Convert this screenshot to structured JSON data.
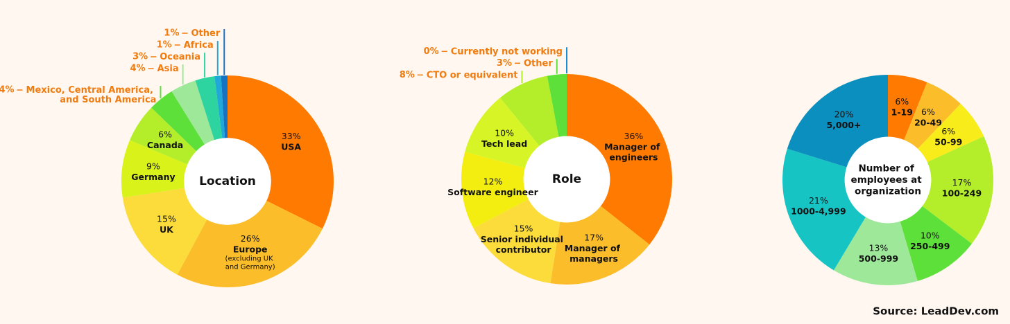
{
  "chart_data": [
    {
      "type": "pie",
      "title": "Location",
      "categories": [
        "USA",
        "Europe",
        "UK",
        "Germany",
        "Canada",
        "Mexico, Central America, and South America",
        "Asia",
        "Oceania",
        "Africa",
        "Other"
      ],
      "values": [
        33,
        26,
        15,
        9,
        6,
        4,
        4,
        3,
        1,
        1
      ],
      "value_labels": [
        "33%",
        "26%",
        "15%",
        "9%",
        "6%",
        "4%",
        "4%",
        "3%",
        "1%",
        "1%"
      ],
      "colors": [
        "#ff7a00",
        "#fbbd2a",
        "#fbdc3a",
        "#d9f21a",
        "#b4ee2a",
        "#5ee03a",
        "#9ee89a",
        "#2dd4a0",
        "#1fa8d8",
        "#1673c4"
      ],
      "annotations": [
        {
          "category": "Europe",
          "text": "(excluding UK and Germany)"
        }
      ]
    },
    {
      "type": "pie",
      "title": "Role",
      "categories": [
        "Manager of engineers",
        "Manager of managers",
        "Senior individual contributor",
        "Software engineer",
        "Tech lead",
        "CTO or equivalent",
        "Other",
        "Currently not working"
      ],
      "values": [
        36,
        17,
        15,
        12,
        10,
        8,
        3,
        0
      ],
      "value_labels": [
        "36%",
        "17%",
        "15%",
        "12%",
        "10%",
        "8%",
        "3%",
        "0%"
      ],
      "colors": [
        "#ff7a00",
        "#fbbd2a",
        "#fbdc3a",
        "#f3ee10",
        "#d7f526",
        "#b4ee2a",
        "#5ee03a",
        "#1a8ed0"
      ]
    },
    {
      "type": "pie",
      "title": "Number of employees at organization",
      "categories": [
        "1-19",
        "20-49",
        "50-99",
        "100-249",
        "250-499",
        "500-999",
        "1000-4,999",
        "5,000+"
      ],
      "values": [
        6,
        6,
        6,
        17,
        10,
        13,
        21,
        20
      ],
      "value_labels": [
        "6%",
        "6%",
        "6%",
        "17%",
        "10%",
        "13%",
        "21%",
        "20%"
      ],
      "colors": [
        "#ff7a00",
        "#fbbd2a",
        "#f8ec1a",
        "#b4ee2a",
        "#5ee03a",
        "#9ee89a",
        "#16c4c4",
        "#0a8fbf"
      ]
    }
  ],
  "source": "Source: LeadDev.com"
}
